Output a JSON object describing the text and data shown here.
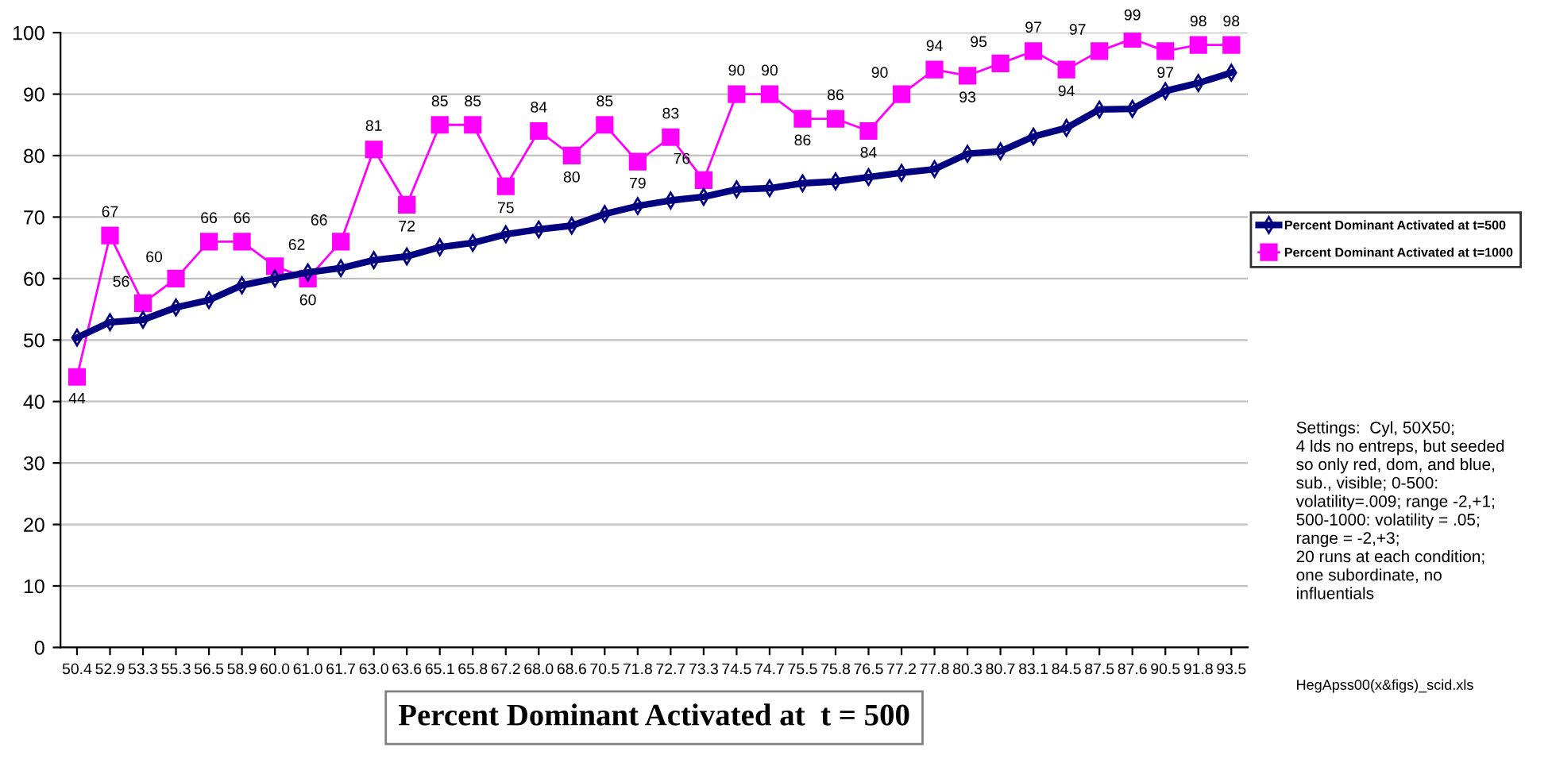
{
  "chart_data": {
    "type": "line",
    "xlabel": "Percent Dominant Activated at  t = 500",
    "categories": [
      "50.4",
      "52.9",
      "53.3",
      "55.3",
      "56.5",
      "58.9",
      "60.0",
      "61.0",
      "61.7",
      "63.0",
      "63.6",
      "65.1",
      "65.8",
      "67.2",
      "68.0",
      "68.6",
      "70.5",
      "71.8",
      "72.7",
      "73.3",
      "74.5",
      "74.7",
      "75.5",
      "75.8",
      "76.5",
      "77.2",
      "77.8",
      "80.3",
      "80.7",
      "83.1",
      "84.5",
      "87.5",
      "87.6",
      "90.5",
      "91.8",
      "93.5"
    ],
    "series": [
      {
        "name": "Percent Dominant Activated at t=500",
        "color": "#000080",
        "marker": "diamond",
        "values": [
          50.4,
          52.9,
          53.3,
          55.3,
          56.5,
          58.9,
          60.0,
          61.0,
          61.7,
          63.0,
          63.6,
          65.1,
          65.8,
          67.2,
          68.0,
          68.6,
          70.5,
          71.8,
          72.7,
          73.3,
          74.5,
          74.7,
          75.5,
          75.8,
          76.5,
          77.2,
          77.8,
          80.3,
          80.7,
          83.1,
          84.5,
          87.5,
          87.6,
          90.5,
          91.8,
          93.5
        ]
      },
      {
        "name": "Percent Dominant Activated at t=1000",
        "color": "#ff00ff",
        "marker": "square",
        "data_labels": true,
        "values": [
          44,
          67,
          56,
          60,
          66,
          66,
          62,
          60,
          66,
          81,
          72,
          85,
          85,
          75,
          84,
          80,
          85,
          79,
          83,
          76,
          90,
          90,
          86,
          86,
          84,
          90,
          94,
          93,
          95,
          97,
          94,
          97,
          99,
          97,
          98,
          98
        ]
      }
    ],
    "ylim": [
      0,
      100
    ],
    "yticks": [
      0,
      10,
      20,
      30,
      40,
      50,
      60,
      70,
      80,
      90,
      100
    ],
    "grid": "y",
    "legend": "right",
    "annotations": [
      "Settings:  Cyl, 50X50;\n4 lds no entreps, but seeded\nso only red, dom, and blue,\nsub., visible; 0-500:\nvolatility=.009; range -2,+1;\n500-1000: volatility = .05;\nrange = -2,+3;\n20 runs at each condition;\none subordinate, no\ninfluentials",
      "HegApss00(x&figs)_scid.xls"
    ]
  }
}
